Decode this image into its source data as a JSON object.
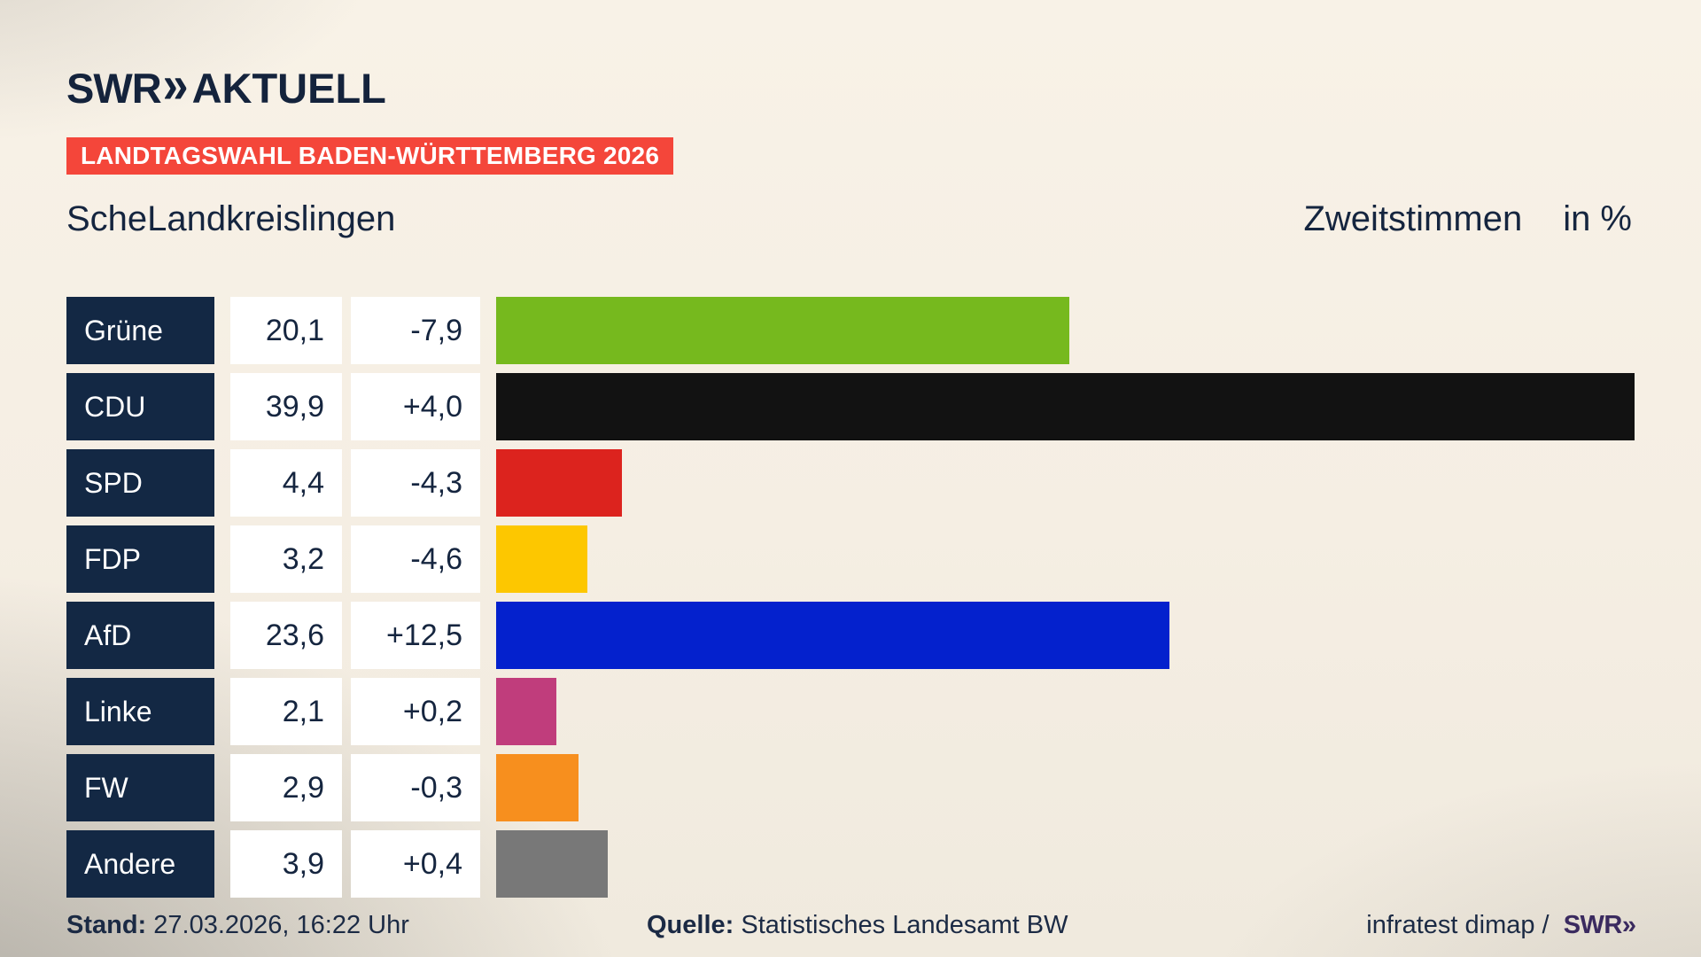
{
  "brand": {
    "swr": "SWR",
    "chevrons": "»",
    "suffix": "AKTUELL"
  },
  "banner": {
    "text": "LANDTAGSWAHL BADEN-WÜRTTEMBERG 2026",
    "bg_color": "#f4463a",
    "text_color": "#ffffff"
  },
  "title": {
    "region": "ScheLandkreislingen",
    "measure": "Zweitstimmen",
    "unit": "in %"
  },
  "chart_data": {
    "type": "bar",
    "orientation": "horizontal",
    "title": "ScheLandkreislingen — Zweitstimmen in %",
    "unit": "percent",
    "categories": [
      "Grüne",
      "CDU",
      "SPD",
      "FDP",
      "AfD",
      "Linke",
      "FW",
      "Andere"
    ],
    "values": [
      20.1,
      39.9,
      4.4,
      3.2,
      23.6,
      2.1,
      2.9,
      3.9
    ],
    "diffs": [
      -7.9,
      4.0,
      -4.3,
      -4.6,
      12.5,
      0.2,
      -0.3,
      0.4
    ],
    "value_labels": [
      "20,1",
      "39,9",
      "4,4",
      "3,2",
      "23,6",
      "2,1",
      "2,9",
      "3,9"
    ],
    "diff_labels": [
      "-7,9",
      "+4,0",
      "-4,3",
      "-4,6",
      "+12,5",
      "+0,2",
      "-0,3",
      "+0,4"
    ],
    "bar_colors": [
      "#76b91e",
      "#121212",
      "#dc231e",
      "#fdc700",
      "#0421cd",
      "#c03d7c",
      "#f78f1e",
      "#787878"
    ],
    "label_box_color": "#132844",
    "value_box_color": "#ffffff",
    "xlim": [
      0,
      39.9
    ],
    "axis_hidden": true,
    "legend": "none"
  },
  "footer": {
    "stand_label": "Stand:",
    "stand_value": "27.03.2026, 16:22 Uhr",
    "quelle_label": "Quelle:",
    "quelle_value": "Statistisches Landesamt BW",
    "credit_text": "infratest dimap /",
    "credit_brand_swr": "SWR",
    "credit_brand_chevrons": "»"
  }
}
